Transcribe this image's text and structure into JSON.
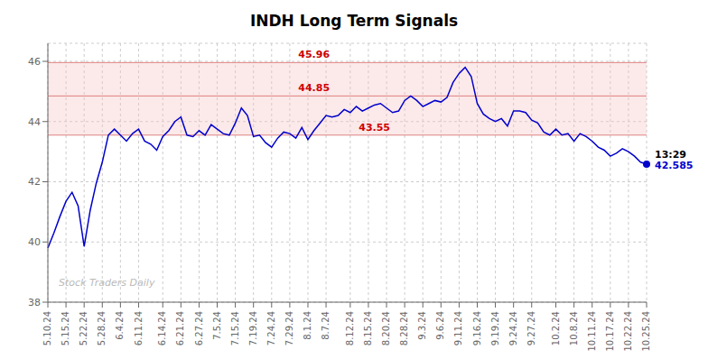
{
  "chart_data": {
    "type": "line",
    "title": "INDH Long Term Signals",
    "categories": [
      "5.10.24",
      null,
      null,
      "5.15.24",
      null,
      null,
      "5.22.24",
      null,
      null,
      "5.28.24",
      null,
      null,
      "6.4.24",
      null,
      null,
      "6.11.24",
      null,
      null,
      null,
      "6.14.24",
      null,
      null,
      "6.21.24",
      null,
      null,
      "6.27.24",
      null,
      null,
      "7.5.24",
      null,
      null,
      "7.15.24",
      null,
      null,
      "7.19.24",
      null,
      null,
      "7.24.24",
      null,
      null,
      "7.29.24",
      null,
      null,
      "8.1.24",
      null,
      null,
      "8.7.24",
      null,
      null,
      null,
      "8.12.24",
      null,
      null,
      "8.15.24",
      null,
      null,
      "8.20.24",
      null,
      null,
      "8.28.24",
      null,
      null,
      "9.3.24",
      null,
      null,
      "9.6.24",
      null,
      null,
      "9.11.24",
      null,
      null,
      "9.16.24",
      null,
      null,
      "9.19.24",
      null,
      null,
      "9.24.24",
      null,
      null,
      "9.27.24",
      null,
      null,
      null,
      "10.2.24",
      null,
      null,
      "10.8.24",
      null,
      null,
      "10.11.24",
      null,
      null,
      "10.17.24",
      null,
      null,
      "10.22.24",
      null,
      null,
      "10.25.24"
    ],
    "values": [
      39.8,
      40.3,
      40.85,
      41.35,
      41.65,
      41.2,
      39.85,
      41.05,
      41.95,
      42.65,
      43.55,
      43.75,
      43.55,
      43.35,
      43.6,
      43.75,
      43.35,
      43.25,
      43.05,
      43.5,
      43.7,
      44.0,
      44.15,
      43.55,
      43.5,
      43.7,
      43.55,
      43.9,
      43.75,
      43.6,
      43.55,
      43.95,
      44.45,
      44.2,
      43.5,
      43.55,
      43.3,
      43.15,
      43.45,
      43.65,
      43.6,
      43.45,
      43.8,
      43.4,
      43.7,
      43.95,
      44.2,
      44.15,
      44.2,
      44.4,
      44.3,
      44.5,
      44.35,
      44.45,
      44.55,
      44.6,
      44.45,
      44.3,
      44.35,
      44.7,
      44.85,
      44.7,
      44.5,
      44.6,
      44.7,
      44.65,
      44.8,
      45.3,
      45.6,
      45.8,
      45.5,
      44.6,
      44.25,
      44.1,
      44.0,
      44.1,
      43.85,
      44.35,
      44.35,
      44.3,
      44.05,
      43.95,
      43.65,
      43.55,
      43.75,
      43.55,
      43.6,
      43.35,
      43.6,
      43.5,
      43.35,
      43.15,
      43.05,
      42.85,
      42.95,
      43.1,
      43.0,
      42.85,
      42.65,
      42.585
    ],
    "color": "#0000cc",
    "ylim": [
      38,
      46.6
    ],
    "yticks": [
      38,
      40,
      42,
      44,
      46
    ],
    "grid": true,
    "hlines": [
      {
        "y": 45.96,
        "label": "45.96",
        "color": "#cc0000"
      },
      {
        "y": 44.85,
        "label": "44.85",
        "color": "#cc0000"
      },
      {
        "y": 43.55,
        "label": "43.55",
        "color": "#cc0000"
      }
    ],
    "hline_color": "#e08080",
    "band_color": "#f5c0c0",
    "annotations": [
      {
        "text": "13:29",
        "color": "#000000"
      },
      {
        "text": "42.585",
        "color": "#0000cc"
      }
    ],
    "watermark": {
      "text": "Stock Traders Daily",
      "color": "#aaaaaa"
    }
  }
}
